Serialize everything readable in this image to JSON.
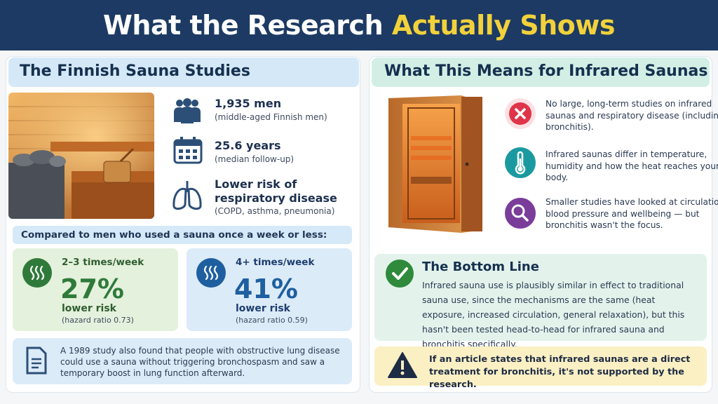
{
  "header": {
    "title_part1": "What the Research ",
    "title_part2": "Actually Shows"
  },
  "left_panel": {
    "title": "The Finnish Sauna Studies",
    "stats": [
      {
        "icon": "people-icon",
        "main": "1,935 men",
        "sub": "(middle-aged Finnish men)"
      },
      {
        "icon": "calendar-icon",
        "main": "25.6 years",
        "sub": "(median follow-up)"
      },
      {
        "icon": "lungs-icon",
        "main_line1": "Lower risk of",
        "main_line2": "respiratory disease",
        "sub": "(COPD, asthma, pneumonia)"
      }
    ],
    "compare_label": "Compared to men who used a sauna once a week or less:",
    "cards": [
      {
        "freq": "2–3 times/week",
        "percent": "27%",
        "risk": "lower risk",
        "hazard": "(hazard ratio 0.73)",
        "color": "#2f7a3a"
      },
      {
        "freq": "4+ times/week",
        "percent": "41%",
        "risk": "lower risk",
        "hazard": "(hazard ratio 0.59)",
        "color": "#1e5fa0"
      }
    ],
    "note": "A 1989 study also found that people with obstructive lung disease could use a sauna without triggering bronchospasm and saw a temporary boost in lung function afterward."
  },
  "right_panel": {
    "title": "What This Means for Infrared Saunas",
    "bullets": [
      {
        "icon": "x-icon",
        "color": "#e0344a",
        "text": "No large, long-term studies on infrared saunas and respiratory disease (including bronchitis)."
      },
      {
        "icon": "thermometer-icon",
        "color": "#1a9aa0",
        "text": "Infrared saunas differ in temperature, humidity and how the heat reaches your body."
      },
      {
        "icon": "magnifier-icon",
        "color": "#7a3d9a",
        "text": "Smaller studies have looked at circulation, blood pressure and wellbeing — but bronchitis wasn't the focus."
      }
    ],
    "bottom_line": {
      "title": "The Bottom Line",
      "text": "Infrared sauna use is plausibly similar in effect to traditional sauna use, since the mechanisms are the same (heat exposure, increased circulation, general relaxation), but this hasn't been tested head-to-head for infrared sauna and bronchitis specifically."
    },
    "warning": "If an article states that infrared saunas are a direct treatment for bronchitis, it's not supported by the research."
  }
}
